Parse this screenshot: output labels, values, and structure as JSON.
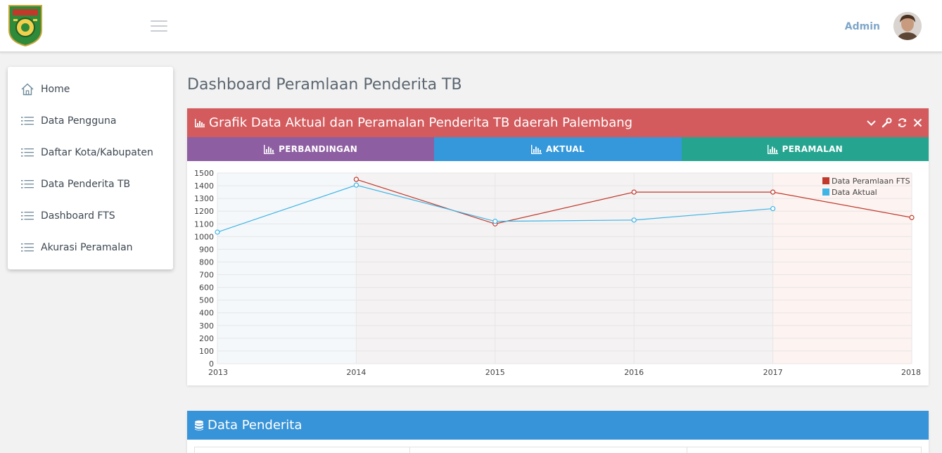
{
  "header": {
    "user_name": "Admin"
  },
  "sidebar": {
    "items": [
      {
        "label": "Home",
        "icon": "home-icon"
      },
      {
        "label": "Data Pengguna",
        "icon": "list-icon"
      },
      {
        "label": "Daftar Kota/Kabupaten",
        "icon": "list-icon"
      },
      {
        "label": "Data Penderita TB",
        "icon": "list-icon"
      },
      {
        "label": "Dashboard FTS",
        "icon": "list-icon"
      },
      {
        "label": "Akurasi Peramalan",
        "icon": "list-icon"
      }
    ]
  },
  "main": {
    "page_title": "Dashboard Peramlaan Penderita TB",
    "chart_panel": {
      "title": "Grafik Data Aktual dan Peramalan Penderita TB daerah Palembang",
      "tabs": [
        "PERBANDINGAN",
        "AKTUAL",
        "PERAMALAN"
      ]
    },
    "data_panel": {
      "title": "Data Penderita"
    }
  },
  "colors": {
    "panel_header": "#d35b5d",
    "tab_perbandingan": "#8e5ea2",
    "tab_aktual": "#3498db",
    "tab_peramalan": "#25a590",
    "series_forecast": "#c0392b",
    "series_actual": "#3fb5e5",
    "data_panel_header": "#3894d8"
  },
  "chart_data": {
    "type": "line",
    "x": [
      2013,
      2014,
      2015,
      2016,
      2017,
      2018
    ],
    "ylim": [
      0,
      1500
    ],
    "yticks": [
      0,
      100,
      200,
      300,
      400,
      500,
      600,
      700,
      800,
      900,
      1000,
      1100,
      1200,
      1300,
      1400,
      1500
    ],
    "grid": true,
    "legend_position": "top-right",
    "series": [
      {
        "name": "Data Peramlaan FTS",
        "x": [
          2014,
          2015,
          2016,
          2017,
          2018
        ],
        "values": [
          1450,
          1100,
          1350,
          1350,
          1150
        ],
        "color": "#c0392b"
      },
      {
        "name": "Data Aktual",
        "x": [
          2013,
          2014,
          2015,
          2016,
          2017
        ],
        "values": [
          1035,
          1405,
          1120,
          1130,
          1220
        ],
        "color": "#3fb5e5"
      }
    ]
  }
}
